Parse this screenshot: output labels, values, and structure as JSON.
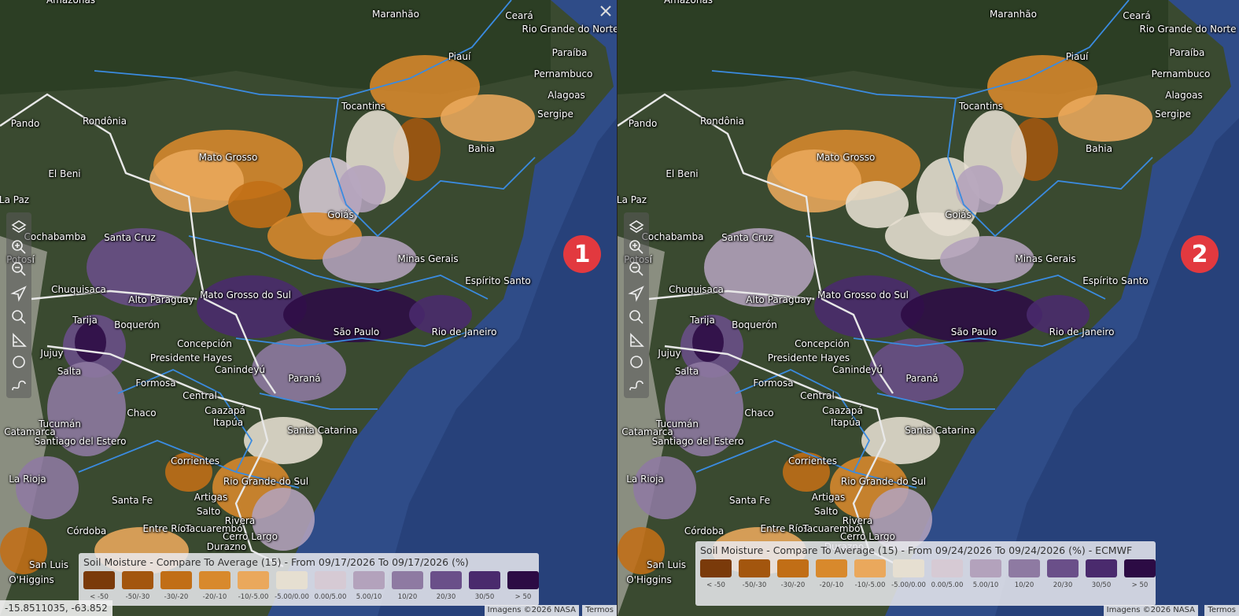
{
  "places": [
    "Amazonas",
    "Maranhão",
    "Ceará",
    "Rio Grande do Norte",
    "Paraíba",
    "Piauí",
    "Pernambuco",
    "Alagoas",
    "Tocantins",
    "Sergipe",
    "Rondônia",
    "Pando",
    "Bahia",
    "Mato Grosso",
    "El Beni",
    "La Paz",
    "Goiás",
    "Cochabamba",
    "Santa Cruz",
    "Potosí",
    "Minas Gerais",
    "Espírito Santo",
    "Chuquisaca",
    "Alto Paraguay",
    "Mato Grosso do Sul",
    "São Paulo",
    "Rio de Janeiro",
    "Tarija",
    "Boquerón",
    "Concepción",
    "Jujuy",
    "Presidente Hayes",
    "Canindeyú",
    "Salta",
    "Paraná",
    "Formosa",
    "Central",
    "Caazapá",
    "Chaco",
    "Itapúa",
    "Tucumán",
    "Catamarca",
    "Santa Catarina",
    "Santiago del Estero",
    "Corrientes",
    "Rio Grande do Sul",
    "La Rioja",
    "Santa Fe",
    "Artigas",
    "Salto",
    "Rivera",
    "Entre Ríos",
    "Tacuarembó",
    "Córdoba",
    "Cerro Largo",
    "Durazno",
    "San Luis",
    "O'Higgins"
  ],
  "legend_items": [
    {
      "label": "< -50",
      "color": "#7a3a0a"
    },
    {
      "label": "-50/-30",
      "color": "#a3560e"
    },
    {
      "label": "-30/-20",
      "color": "#c16e16"
    },
    {
      "label": "-20/-10",
      "color": "#d8892c"
    },
    {
      "label": "-10/-5.00",
      "color": "#eaa85c"
    },
    {
      "label": "-5.00/0.00",
      "color": "#e6dfd1"
    },
    {
      "label": "0.00/5.00",
      "color": "#d6cad4"
    },
    {
      "label": "5.00/10",
      "color": "#b3a2bc"
    },
    {
      "label": "10/20",
      "color": "#8e7aa2"
    },
    {
      "label": "20/30",
      "color": "#6a4f89"
    },
    {
      "label": "30/50",
      "color": "#4a2a6d"
    },
    {
      "label": "> 50",
      "color": "#2c0b44"
    }
  ],
  "panels": [
    {
      "badge": "1",
      "legend_title": "Soil Moisture - Compare To Average (15) - From 09/17/2026 To 09/17/2026 (%)",
      "coordinates": "-15.8511035, -63.852",
      "attribution": "Imagens ©2026 NASA",
      "terms": "Termos"
    },
    {
      "badge": "2",
      "legend_title": "Soil Moisture - Compare To Average (15) - From 09/24/2026 To 09/24/2026 (%) - ECMWF",
      "attribution": "Imagens ©2026 NASA",
      "terms": "Termos"
    }
  ]
}
